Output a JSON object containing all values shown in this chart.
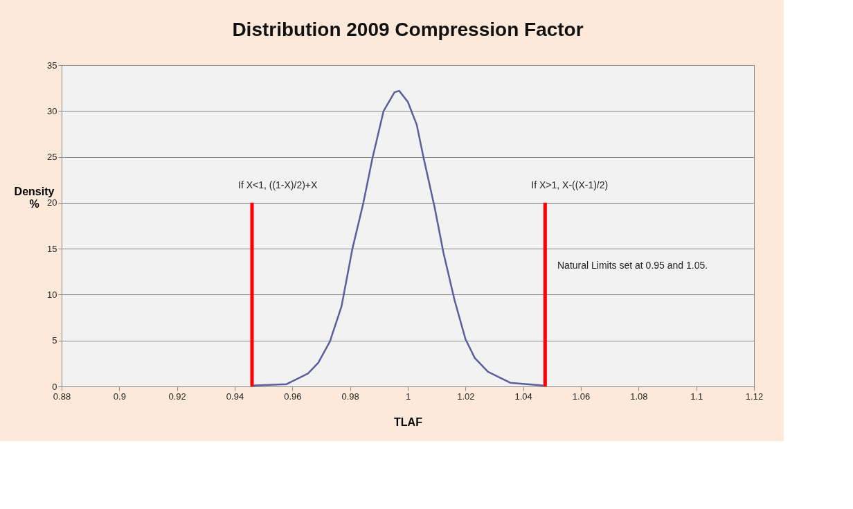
{
  "chart_data": {
    "type": "line",
    "title": "Distribution 2009 Compression Factor",
    "xlabel": "TLAF",
    "ylabel": "Density %",
    "xlim": [
      0.88,
      1.12
    ],
    "xticks": [
      0.88,
      {
        "value": 0.9,
        "label": "0.9"
      },
      0.92,
      0.94,
      0.96,
      0.98,
      {
        "value": 1,
        "label": "1"
      },
      1.02,
      1.04,
      1.06,
      1.08,
      {
        "value": 1.1,
        "label": "1.1"
      },
      1.12
    ],
    "ylim": [
      0,
      35
    ],
    "yticks": [
      0,
      5,
      10,
      15,
      20,
      25,
      30,
      35
    ],
    "grid": "y",
    "marker": "none",
    "line_style": "solid",
    "series": [
      {
        "color": "#5b5e9c",
        "x": [
          0.946,
          0.958,
          0.9654,
          0.969,
          0.973,
          0.977,
          0.9808,
          0.9846,
          0.9877,
          0.9916,
          0.9954,
          0.997,
          1.0,
          1.0031,
          1.0054,
          1.0093,
          1.0124,
          1.0162,
          1.02,
          1.0232,
          1.0278,
          1.0355,
          1.047
        ],
        "values": [
          0.1,
          0.25,
          1.4,
          2.6,
          4.9,
          8.7,
          15,
          20,
          24.8,
          30,
          32.05,
          32.2,
          31,
          28.5,
          25,
          19.5,
          14.5,
          9.4,
          5.15,
          3.1,
          1.6,
          0.4,
          0.1
        ]
      },
      {
        "color": "#ff0000",
        "x": [
          0.946,
          0.946
        ],
        "values": [
          0,
          20
        ]
      },
      {
        "color": "#ff0000",
        "x": [
          1.0476,
          1.0476
        ],
        "values": [
          0,
          20
        ]
      }
    ],
    "annotations": [
      {
        "text": "If X<1, ((1-X)/2)+X",
        "x": 0.946,
        "y": 20
      },
      {
        "text": "If X>1, X-((X-1)/2)",
        "x": 1.0476,
        "y": 20
      },
      "Natural Limits set at 0.95 and 1.05."
    ]
  }
}
